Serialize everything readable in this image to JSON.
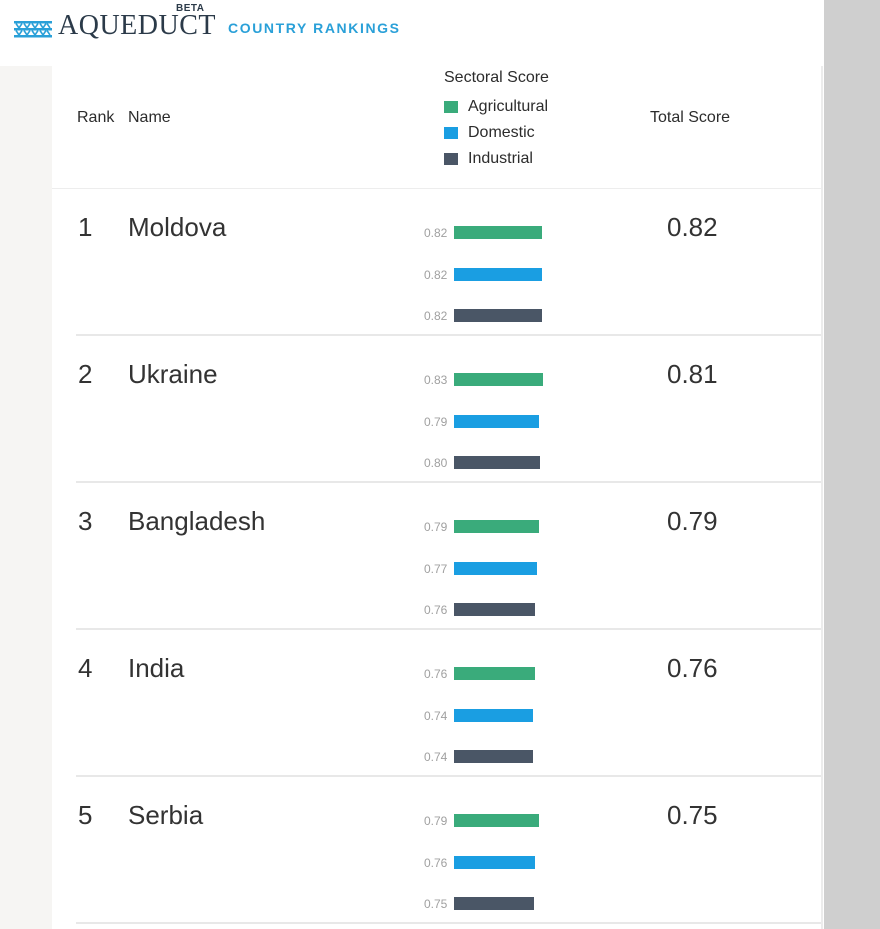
{
  "header": {
    "logo_text": "AQUEDUCT",
    "beta_label": "BETA",
    "app_title": "COUNTRY RANKINGS"
  },
  "table": {
    "columns": {
      "rank": "Rank",
      "name": "Name",
      "sectoral": "Sectoral Score",
      "total": "Total Score"
    },
    "legend": [
      {
        "label": "Agricultural",
        "color": "#3aab7b"
      },
      {
        "label": "Domestic",
        "color": "#1a9ee2"
      },
      {
        "label": "Industrial",
        "color": "#4a5666"
      }
    ],
    "rows": [
      {
        "rank": "1",
        "name": "Moldova",
        "total": "0.82",
        "scores": [
          {
            "value": "0.82",
            "v": 0.82
          },
          {
            "value": "0.82",
            "v": 0.82
          },
          {
            "value": "0.82",
            "v": 0.82
          }
        ]
      },
      {
        "rank": "2",
        "name": "Ukraine",
        "total": "0.81",
        "scores": [
          {
            "value": "0.83",
            "v": 0.83
          },
          {
            "value": "0.79",
            "v": 0.79
          },
          {
            "value": "0.80",
            "v": 0.8
          }
        ]
      },
      {
        "rank": "3",
        "name": "Bangladesh",
        "total": "0.79",
        "scores": [
          {
            "value": "0.79",
            "v": 0.79
          },
          {
            "value": "0.77",
            "v": 0.77
          },
          {
            "value": "0.76",
            "v": 0.76
          }
        ]
      },
      {
        "rank": "4",
        "name": "India",
        "total": "0.76",
        "scores": [
          {
            "value": "0.76",
            "v": 0.76
          },
          {
            "value": "0.74",
            "v": 0.74
          },
          {
            "value": "0.74",
            "v": 0.74
          }
        ]
      },
      {
        "rank": "5",
        "name": "Serbia",
        "total": "0.75",
        "scores": [
          {
            "value": "0.79",
            "v": 0.79
          },
          {
            "value": "0.76",
            "v": 0.76
          },
          {
            "value": "0.75",
            "v": 0.75
          }
        ]
      }
    ]
  },
  "icons": {
    "logo": "aqueduct-logo-icon"
  }
}
